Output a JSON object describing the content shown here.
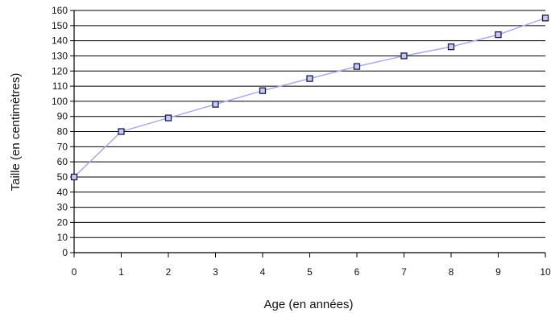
{
  "chart_data": {
    "type": "line",
    "xlabel": "Age (en années)",
    "ylabel": "Taille (en centimètres)",
    "xlim": [
      0,
      10
    ],
    "ylim": [
      0,
      160
    ],
    "x_ticks": [
      "0",
      "1",
      "2",
      "3",
      "4",
      "5",
      "6",
      "7",
      "8",
      "9",
      "10"
    ],
    "y_ticks": [
      "0",
      "10",
      "20",
      "30",
      "40",
      "50",
      "60",
      "70",
      "80",
      "90",
      "100",
      "110",
      "120",
      "130",
      "140",
      "150",
      "160"
    ],
    "grid": "horizontal",
    "series": [
      {
        "x": [
          0,
          1,
          2,
          3,
          4,
          5,
          6,
          7,
          8,
          9,
          10
        ],
        "y": [
          50,
          80,
          89,
          98,
          107,
          115,
          123,
          130,
          136,
          144,
          155
        ]
      }
    ],
    "line_color": "#aaaaee",
    "marker_edge_color": "#1a1a4a",
    "marker_fill_color": "#c8c8f0"
  }
}
